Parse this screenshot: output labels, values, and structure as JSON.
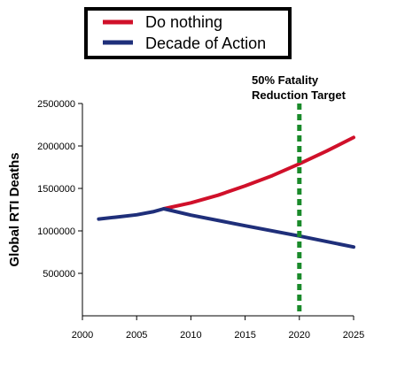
{
  "chart_data": {
    "type": "line",
    "ylabel": "Global RTI Deaths",
    "xlim": [
      2000,
      2025
    ],
    "ylim": [
      0,
      2500000
    ],
    "x_ticks": [
      2000,
      2005,
      2010,
      2015,
      2020,
      2025
    ],
    "y_ticks": [
      500000,
      1000000,
      1500000,
      2000000,
      2500000
    ],
    "x_tick_labels": [
      "2000",
      "2005",
      "2010",
      "2015",
      "2020",
      "2025"
    ],
    "y_tick_labels": [
      "500000",
      "1000000",
      "1500000",
      "2000000",
      "2500000"
    ],
    "grid": false,
    "legend_position": "top-left",
    "series": [
      {
        "name": "Do nothing",
        "color": "#d0102a",
        "x": [
          2007.5,
          2010,
          2012.5,
          2015,
          2017.5,
          2020,
          2022.5,
          2025
        ],
        "y": [
          1260000,
          1330000,
          1420000,
          1530000,
          1650000,
          1790000,
          1940000,
          2100000
        ]
      },
      {
        "name": "Decade of Action",
        "color": "#1f2f7a",
        "x": [
          2001.5,
          2003,
          2005,
          2006.5,
          2007.5,
          2010,
          2015,
          2020,
          2025
        ],
        "y": [
          1140000,
          1160000,
          1190000,
          1225000,
          1260000,
          1185000,
          1060000,
          940000,
          810000
        ]
      }
    ],
    "annotations": [
      {
        "lines": [
          "50% Fatality",
          "Reduction Target"
        ],
        "x": 2020,
        "color": "#1a8a2a",
        "style": "dashed-vertical-line"
      }
    ]
  }
}
